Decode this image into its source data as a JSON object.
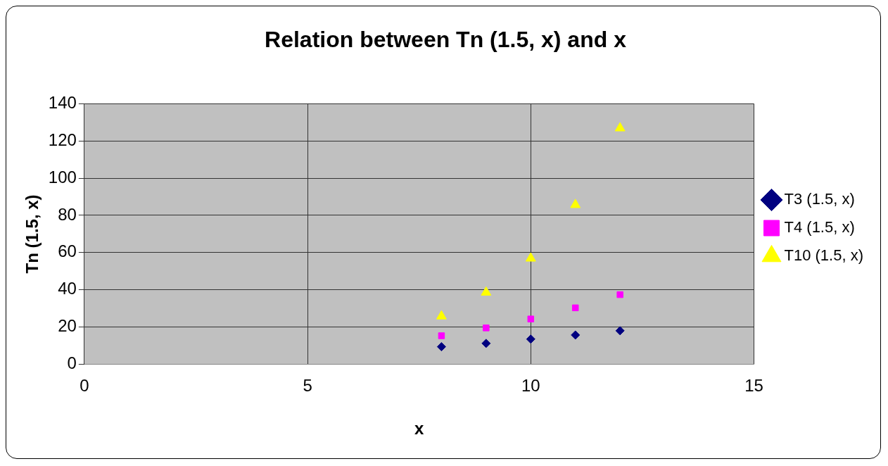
{
  "chart_data": {
    "type": "scatter",
    "title": "Relation between Tn (1.5, x) and x",
    "xlabel": "x",
    "ylabel": "Tn (1.5, x)",
    "x": [
      8,
      9,
      10,
      11,
      12
    ],
    "series": [
      {
        "name": "T3 (1.5, x)",
        "color": "#000080",
        "marker": "diamond",
        "values": [
          9.4,
          11.2,
          13.5,
          15.7,
          18
        ]
      },
      {
        "name": "T4 (1.5, x)",
        "color": "#ff00ff",
        "marker": "square",
        "values": [
          15.3,
          19.5,
          24.3,
          30.3,
          37.4
        ]
      },
      {
        "name": "T10 (1.5, x)",
        "color": "#ffff00",
        "marker": "triangle",
        "values": [
          25.8,
          38.6,
          56.9,
          85.7,
          126.9
        ]
      }
    ],
    "xlim": [
      0,
      15
    ],
    "xticks": [
      0,
      5,
      10,
      15
    ],
    "ylim": [
      0,
      140
    ],
    "yticks": [
      0,
      20,
      40,
      60,
      80,
      100,
      120,
      140
    ],
    "grid": true,
    "legend": "right"
  }
}
